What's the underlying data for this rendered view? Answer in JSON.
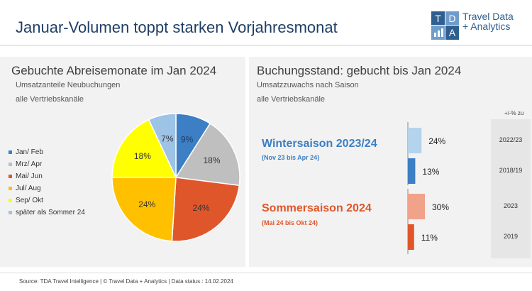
{
  "header": {
    "title": "Januar-Volumen toppt starken Vorjahresmonat",
    "logo_letters": [
      "T",
      "D",
      "A"
    ],
    "logo_text_line1": "Travel Data",
    "logo_text_line2": "+ Analytics"
  },
  "left": {
    "title": "Gebuchte Abreisemonate im Jan 2024",
    "subtitle1": "Umsatzanteile Neubuchungen",
    "subtitle2": "alle Vertriebskanäle"
  },
  "right": {
    "title": "Buchungsstand: gebucht bis Jan 2024",
    "subtitle1": "Umsatzzuwachs nach Saison",
    "subtitle2": "alle Vertriebskanäle",
    "column_header": "+/-% zu",
    "winter_title": "Wintersaison 2023/24",
    "winter_sub": "(Nov 23 bis Apr 24)",
    "summer_title": "Sommersaison 2024",
    "summer_sub": "(Mai 24 bis Okt 24)"
  },
  "colors": {
    "winter": "#3c7fc4",
    "summer": "#e0562b",
    "winter_light": "#b4d3ec",
    "summer_light": "#f1a28a"
  },
  "footer": "Source: TDA Travel Intelligence   |  © Travel Data + Analytics  | Data status : 14.02.2024",
  "chart_data": [
    {
      "type": "pie",
      "title": "Gebuchte Abreisemonate im Jan 2024",
      "slices": [
        {
          "label": "Jan/ Feb",
          "value": 9,
          "display": "9%",
          "color": "#3c7fc4"
        },
        {
          "label": "Mrz/ Apr",
          "value": 18,
          "display": "18%",
          "color": "#bfbfbf"
        },
        {
          "label": "Mai/ Jun",
          "value": 24,
          "display": "24%",
          "color": "#e0562b"
        },
        {
          "label": "Jul/ Aug",
          "value": 24,
          "display": "24%",
          "color": "#ffc000"
        },
        {
          "label": "Sep/ Okt",
          "value": 18,
          "display": "18%",
          "color": "#ffff00"
        },
        {
          "label": "später als Sommer 24",
          "value": 7,
          "display": "7%",
          "color": "#9dc3e6"
        }
      ]
    },
    {
      "type": "bar",
      "title": "Buchungsstand: gebucht bis Jan 2024",
      "bars": [
        {
          "season": "Wintersaison 2023/24",
          "compare": "2022/23",
          "value": 24,
          "display": "24%",
          "color": "#b4d3ec"
        },
        {
          "season": "Wintersaison 2023/24",
          "compare": "2018/19",
          "value": 13,
          "display": "13%",
          "color": "#3c7fc4"
        },
        {
          "season": "Sommersaison 2024",
          "compare": "2023",
          "value": 30,
          "display": "30%",
          "color": "#f1a28a"
        },
        {
          "season": "Sommersaison 2024",
          "compare": "2019",
          "value": 11,
          "display": "11%",
          "color": "#e0562b"
        }
      ]
    }
  ]
}
